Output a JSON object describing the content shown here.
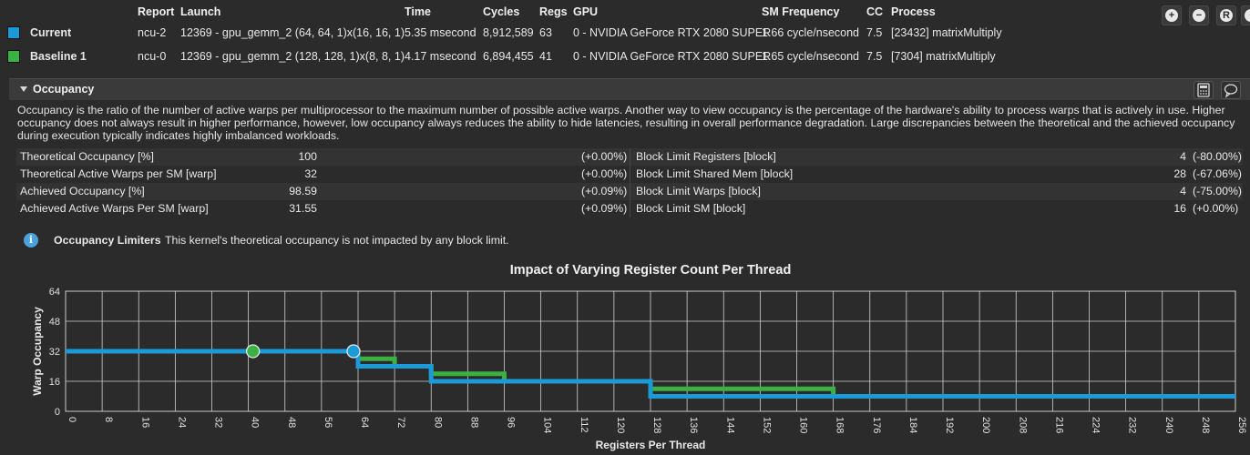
{
  "header": {
    "columns": [
      "Report",
      "Launch",
      "Time",
      "Cycles",
      "Regs",
      "GPU",
      "SM Frequency",
      "CC",
      "Process"
    ],
    "rows": [
      {
        "name": "Current",
        "color": "#1a9bd7",
        "report": "ncu-2",
        "launch": "12369 - gpu_gemm_2 (64, 64, 1)x(16, 16, 1)",
        "time": "5.35 msecond",
        "cycles": "8,912,589",
        "regs": "63",
        "gpu": "0 - NVIDIA GeForce RTX 2080 SUPER",
        "smfreq": "1.66 cycle/nsecond",
        "cc": "7.5",
        "process": "[23432] matrixMultiply"
      },
      {
        "name": "Baseline 1",
        "color": "#3cb043",
        "report": "ncu-0",
        "launch": "12369 - gpu_gemm_2 (128, 128, 1)x(8, 8, 1)",
        "time": "4.17 msecond",
        "cycles": "6,894,455",
        "regs": "41",
        "gpu": "0 - NVIDIA GeForce RTX 2080 SUPER",
        "smfreq": "1.65 cycle/nsecond",
        "cc": "7.5",
        "process": "[7304] matrixMultiply"
      }
    ],
    "toolbar_icons": [
      "zoom-in-icon",
      "zoom-out-icon",
      "reset-icon",
      "more-icon"
    ]
  },
  "section": {
    "title": "Occupancy",
    "description": "Occupancy is the ratio of the number of active warps per multiprocessor to the maximum number of possible active warps. Another way to view occupancy is the percentage of the hardware's ability to process warps that is actively in use. Higher occupancy does not always result in higher performance, however, low occupancy always reduces the ability to hide latencies, resulting in overall performance degradation. Large discrepancies between the theoretical and the achieved occupancy during execution typically indicates highly imbalanced workloads.",
    "metrics": [
      {
        "left_name": "Theoretical Occupancy [%]",
        "left_value": "100",
        "left_delta": "(+0.00%)",
        "right_name": "Block Limit Registers [block]",
        "right_value": "4",
        "right_delta": "(-80.00%)"
      },
      {
        "left_name": "Theoretical Active Warps per SM [warp]",
        "left_value": "32",
        "left_delta": "(+0.00%)",
        "right_name": "Block Limit Shared Mem [block]",
        "right_value": "28",
        "right_delta": "(-67.06%)"
      },
      {
        "left_name": "Achieved Occupancy [%]",
        "left_value": "98.59",
        "left_delta": "(+0.09%)",
        "right_name": "Block Limit Warps [block]",
        "right_value": "4",
        "right_delta": "(-75.00%)"
      },
      {
        "left_name": "Achieved Active Warps Per SM [warp]",
        "left_value": "31.55",
        "left_delta": "(+0.09%)",
        "right_name": "Block Limit SM [block]",
        "right_value": "16",
        "right_delta": "(+0.00%)"
      }
    ],
    "limiters_label": "Occupancy Limiters",
    "limiters_text": "This kernel's theoretical occupancy is not impacted by any block limit."
  },
  "chart_data": {
    "type": "line",
    "title": "Impact of Varying Register Count Per Thread",
    "xlabel": "Registers Per Thread",
    "ylabel": "Warp Occupancy",
    "xlim": [
      0,
      256
    ],
    "ylim": [
      0,
      64
    ],
    "xticks": [
      0,
      8,
      16,
      24,
      32,
      40,
      48,
      56,
      64,
      72,
      80,
      88,
      96,
      104,
      112,
      120,
      128,
      136,
      144,
      152,
      160,
      168,
      176,
      184,
      192,
      200,
      208,
      216,
      224,
      232,
      240,
      248,
      256
    ],
    "yticks": [
      0,
      16,
      32,
      48,
      64
    ],
    "series": [
      {
        "color": "#3cb043",
        "points": [
          [
            0,
            32
          ],
          [
            64,
            32
          ],
          [
            64,
            28
          ],
          [
            72,
            28
          ],
          [
            72,
            24
          ],
          [
            80,
            24
          ],
          [
            80,
            20
          ],
          [
            96,
            20
          ],
          [
            96,
            16
          ],
          [
            128,
            16
          ],
          [
            128,
            12
          ],
          [
            168,
            12
          ],
          [
            168,
            8
          ],
          [
            256,
            8
          ]
        ],
        "marker": [
          41,
          32
        ]
      },
      {
        "color": "#1a9bd7",
        "points": [
          [
            0,
            32
          ],
          [
            64,
            32
          ],
          [
            64,
            24
          ],
          [
            80,
            24
          ],
          [
            80,
            16
          ],
          [
            128,
            16
          ],
          [
            128,
            8
          ],
          [
            256,
            8
          ]
        ],
        "marker": [
          63,
          32
        ]
      }
    ]
  }
}
